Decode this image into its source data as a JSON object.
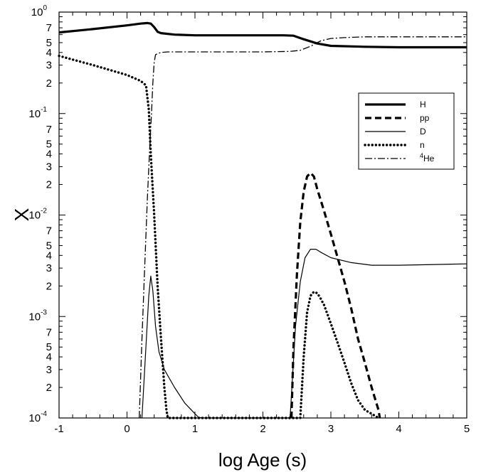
{
  "chart_data": {
    "type": "line",
    "xlabel": "log Age (s)",
    "ylabel": "X",
    "xscale": "linear",
    "yscale": "log",
    "xlim": [
      -1,
      5
    ],
    "ylim": [
      0.0001,
      1
    ],
    "x_ticks": [
      "-1",
      "0",
      "1",
      "2",
      "3",
      "4",
      "5"
    ],
    "y_decade_ticks": [
      {
        "value": 1,
        "base": "10",
        "exp": "0"
      },
      {
        "value": 0.1,
        "base": "10",
        "exp": "-1"
      },
      {
        "value": 0.01,
        "base": "10",
        "exp": "-2"
      },
      {
        "value": 0.001,
        "base": "10",
        "exp": "-3"
      },
      {
        "value": 0.0001,
        "base": "10",
        "exp": "-4"
      }
    ],
    "y_minor_labels": [
      "7",
      "5",
      "4",
      "3",
      "2"
    ],
    "grid": false,
    "legend_position": "right",
    "series": [
      {
        "name": "H",
        "style": "thick-solid",
        "x": [
          -1,
          -0.5,
          0,
          0.2,
          0.3,
          0.35,
          0.4,
          0.45,
          0.5,
          0.7,
          1,
          1.5,
          2,
          2.3,
          2.45,
          2.6,
          2.8,
          3,
          3.5,
          4,
          5
        ],
        "y": [
          0.63,
          0.68,
          0.74,
          0.77,
          0.78,
          0.77,
          0.71,
          0.64,
          0.62,
          0.6,
          0.59,
          0.59,
          0.59,
          0.59,
          0.585,
          0.54,
          0.49,
          0.465,
          0.455,
          0.45,
          0.45
        ]
      },
      {
        "name": "pp",
        "style": "thick-dashed",
        "x": [
          2.42,
          2.45,
          2.5,
          2.55,
          2.6,
          2.65,
          2.7,
          2.75,
          2.8,
          2.9,
          3.0,
          3.1,
          3.2,
          3.3,
          3.4,
          3.5,
          3.6,
          3.7,
          3.72
        ],
        "y": [
          0.0001,
          0.0005,
          0.0026,
          0.0085,
          0.017,
          0.024,
          0.026,
          0.024,
          0.018,
          0.011,
          0.0065,
          0.0038,
          0.0022,
          0.0012,
          0.0006,
          0.00035,
          0.0002,
          0.00012,
          0.0001
        ]
      },
      {
        "name": "D",
        "style": "thin-solid",
        "x": [
          0.22,
          0.27,
          0.32,
          0.35,
          0.38,
          0.42,
          0.47,
          0.55,
          0.7,
          0.85,
          1.0,
          1.05,
          1.1,
          2.4,
          2.48,
          2.55,
          2.62,
          2.7,
          2.78,
          2.85,
          3.0,
          3.3,
          3.6,
          4.0,
          5.0
        ],
        "y": [
          0.0001,
          0.0004,
          0.0016,
          0.0025,
          0.0018,
          0.0008,
          0.00045,
          0.0003,
          0.0002,
          0.00014,
          0.00011,
          0.000102,
          0.0001,
          0.0001,
          0.0008,
          0.0022,
          0.0038,
          0.0046,
          0.0046,
          0.0043,
          0.0038,
          0.0034,
          0.0032,
          0.0032,
          0.0033
        ]
      },
      {
        "name": "n",
        "style": "thick-dotted",
        "x": [
          -1,
          -0.5,
          0,
          0.2,
          0.28,
          0.32,
          0.35,
          0.4,
          0.45,
          0.5,
          0.55,
          0.58,
          0.6,
          2.55,
          2.6,
          2.65,
          2.7,
          2.75,
          2.8,
          2.85,
          2.9,
          3.0,
          3.1,
          3.2,
          3.3,
          3.4,
          3.5,
          3.6,
          3.7
        ],
        "y": [
          0.37,
          0.3,
          0.24,
          0.21,
          0.19,
          0.11,
          0.04,
          0.01,
          0.002,
          0.0006,
          0.0002,
          0.00012,
          0.0001,
          0.0001,
          0.0004,
          0.0011,
          0.0016,
          0.00175,
          0.0017,
          0.0015,
          0.0013,
          0.00085,
          0.00055,
          0.00035,
          0.00022,
          0.00015,
          0.00012,
          0.00011,
          0.0001
        ]
      },
      {
        "name": "4He",
        "label_sup": "4",
        "label_base": "He",
        "style": "dash-dot",
        "x": [
          0.18,
          0.22,
          0.26,
          0.3,
          0.33,
          0.36,
          0.38,
          0.4,
          0.42,
          0.45,
          0.5,
          0.6,
          0.8,
          1.0,
          1.5,
          2.0,
          2.4,
          2.55,
          2.7,
          2.85,
          3.0,
          3.2,
          3.5,
          4.0,
          5.0
        ],
        "y": [
          0.0001,
          0.0006,
          0.003,
          0.015,
          0.04,
          0.1,
          0.2,
          0.32,
          0.38,
          0.39,
          0.4,
          0.405,
          0.405,
          0.405,
          0.405,
          0.405,
          0.41,
          0.42,
          0.46,
          0.52,
          0.55,
          0.56,
          0.57,
          0.57,
          0.57
        ]
      }
    ]
  }
}
